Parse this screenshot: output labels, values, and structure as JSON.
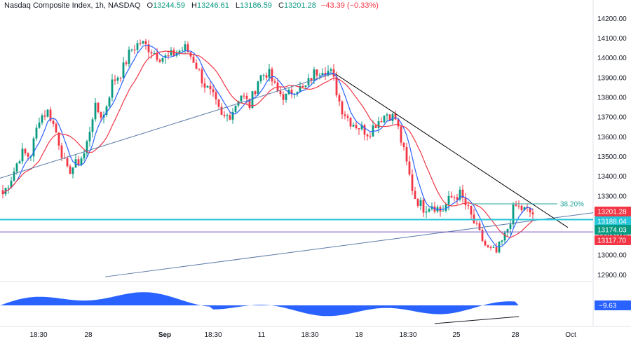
{
  "header": {
    "symbol": "Nasdaq Composite Index, 1h, NASDAQ",
    "open_label": "O",
    "open": "13244.59",
    "high_label": "H",
    "high": "13246.61",
    "low_label": "L",
    "low": "13186.59",
    "close_label": "C",
    "close": "13201.28",
    "change": "−43.39 (−0.33%)"
  },
  "colors": {
    "up": "#089981",
    "down": "#f23645",
    "ma_fast": "#2962ff",
    "ma_slow": "#f23645",
    "hline_cyan": "#26c6da",
    "hline_purple": "#7e57c2",
    "osc": "#2962ff",
    "trend": "#000000",
    "ascending": "#5b7ba8"
  },
  "chart_data": {
    "type": "candlestick",
    "symbol": "Nasdaq Composite Index",
    "interval": "1h",
    "ylim": [
      12880,
      14230
    ],
    "y_ticks": [
      12900,
      13000,
      13100,
      13200,
      13300,
      13400,
      13500,
      13600,
      13700,
      13800,
      13900,
      14000,
      14100,
      14200
    ],
    "y_tick_labels": [
      "12900.00",
      "13000.00",
      "13100.00",
      "13200.00",
      "13300.00",
      "13400.00",
      "13500.00",
      "13600.00",
      "13700.00",
      "13800.00",
      "13900.00",
      "14000.00",
      "14100.00",
      "14200.00"
    ],
    "x_ticks": [
      {
        "label": "18:30",
        "bold": false
      },
      {
        "label": "28",
        "bold": false
      },
      {
        "label": "Sep",
        "bold": true
      },
      {
        "label": "18:30",
        "bold": false
      },
      {
        "label": "11",
        "bold": false
      },
      {
        "label": "18:30",
        "bold": false
      },
      {
        "label": "18",
        "bold": false
      },
      {
        "label": "18:30",
        "bold": false
      },
      {
        "label": "25",
        "bold": false
      },
      {
        "label": "28",
        "bold": false
      },
      {
        "label": "Oct",
        "bold": false
      }
    ],
    "close_path": [
      13310,
      13400,
      13520,
      13500,
      13700,
      13730,
      13600,
      13420,
      13460,
      13520,
      13750,
      13700,
      13880,
      13930,
      14040,
      14080,
      14050,
      14010,
      14000,
      14030,
      14050,
      13980,
      13870,
      13800,
      13690,
      13720,
      13820,
      13760,
      13900,
      13930,
      13830,
      13800,
      13850,
      13840,
      13920,
      13950,
      13920,
      13750,
      13680,
      13650,
      13620,
      13680,
      13720,
      13690,
      13500,
      13300,
      13240,
      13260,
      13220,
      13290,
      13310,
      13220,
      13120,
      13030,
      13010,
      13100,
      13250,
      13230,
      13210
    ],
    "price_badges": [
      {
        "label": "13201.28",
        "value": 13201.28,
        "color": "#f23645"
      },
      {
        "label": "13188.04",
        "value": 13188.04,
        "color": "#26c6da"
      },
      {
        "label": "13174.03",
        "value": 13174.03,
        "color": "#089981"
      },
      {
        "label": "13117.70",
        "value": 13117.7,
        "color": "#f23645"
      }
    ],
    "horizontal_lines": [
      13180,
      13117.7
    ],
    "fib_level": {
      "label": "38.20%",
      "value": 13260
    },
    "oscillator": {
      "value_label": "−9.63"
    }
  }
}
